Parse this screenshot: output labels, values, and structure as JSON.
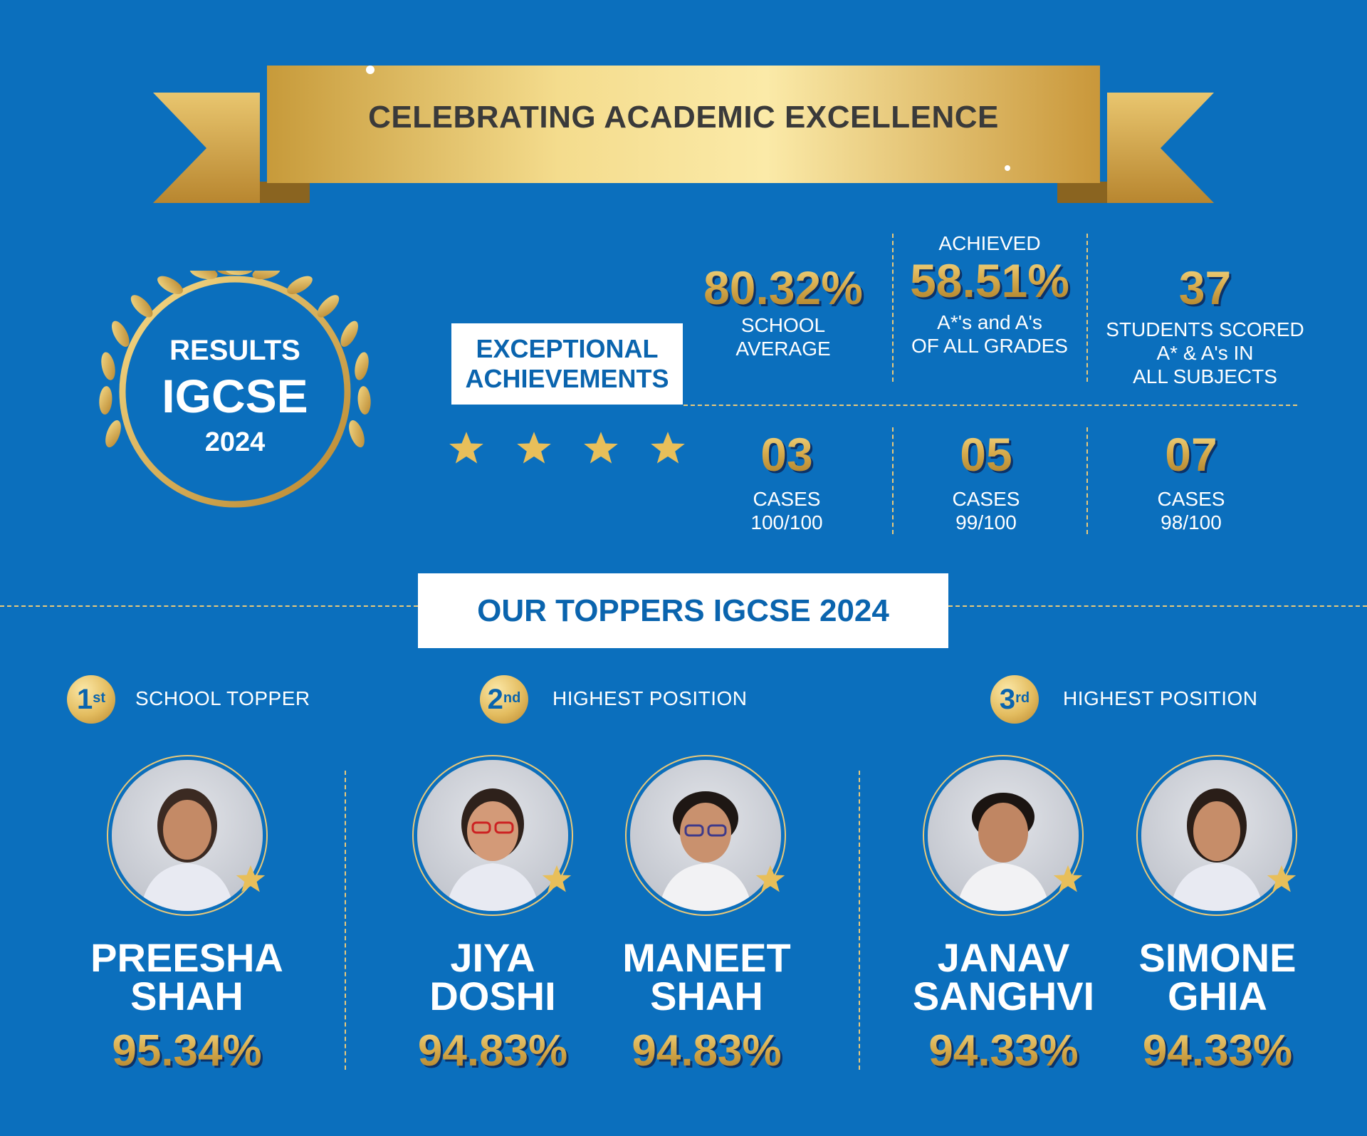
{
  "banner": {
    "title": "CELEBRATING ACADEMIC EXCELLENCE"
  },
  "results": {
    "label": "RESULTS",
    "exam": "IGCSE",
    "year": "2024"
  },
  "exceptional": {
    "line1": "EXCEPTIONAL",
    "line2": "ACHIEVEMENTS"
  },
  "stats_top": [
    {
      "pre": "",
      "value": "80.32%",
      "line1": "SCHOOL",
      "line2": "AVERAGE",
      "line3": ""
    },
    {
      "pre": "ACHIEVED",
      "value": "58.51%",
      "line1": "A*'s and A's",
      "line2": "OF ALL GRADES",
      "line3": ""
    },
    {
      "pre": "",
      "value": "37",
      "line1": "STUDENTS SCORED",
      "line2": "A* & A's IN",
      "line3": "ALL SUBJECTS"
    }
  ],
  "stats_bottom": [
    {
      "value": "03",
      "line1": "CASES",
      "line2": "100/100"
    },
    {
      "value": "05",
      "line1": "CASES",
      "line2": "99/100"
    },
    {
      "value": "07",
      "line1": "CASES",
      "line2": "98/100"
    }
  ],
  "toppers_header": "OUR TOPPERS IGCSE 2024",
  "ranks": [
    {
      "num": "1",
      "sup": "st",
      "text": "SCHOOL TOPPER"
    },
    {
      "num": "2",
      "sup": "nd",
      "text": "HIGHEST POSITION"
    },
    {
      "num": "3",
      "sup": "rd",
      "text": "HIGHEST POSITION"
    }
  ],
  "students": [
    {
      "first": "PREESHA",
      "last": "SHAH",
      "percent": "95.34%"
    },
    {
      "first": "JIYA",
      "last": "DOSHI",
      "percent": "94.83%"
    },
    {
      "first": "MANEET",
      "last": "SHAH",
      "percent": "94.83%"
    },
    {
      "first": "JANAV",
      "last": "SANGHVI",
      "percent": "94.33%"
    },
    {
      "first": "SIMONE",
      "last": "GHIA",
      "percent": "94.33%"
    }
  ],
  "colors": {
    "background": "#0b6fbd",
    "gold": "#d8ad4e",
    "accent_blue": "#0a64ae"
  }
}
